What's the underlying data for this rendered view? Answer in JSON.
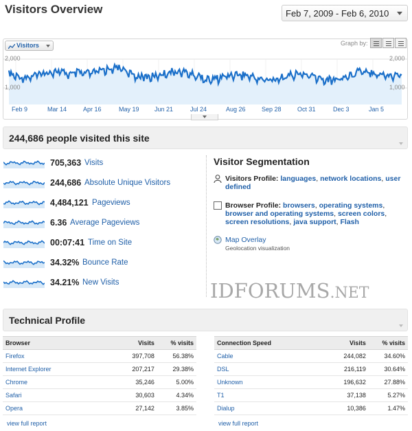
{
  "header": {
    "title": "Visitors Overview",
    "date_range": "Feb 7, 2009 - Feb 6, 2010"
  },
  "graph": {
    "metric_label": "Visitors",
    "graph_by_label": "Graph by:",
    "y_top": "2,000",
    "y_mid": "1,000",
    "y_top_right": "2,000",
    "y_mid_right": "1,000",
    "x_labels": [
      "Feb 9",
      "Mar 14",
      "Apr 16",
      "May 19",
      "Jun 21",
      "Jul 24",
      "Aug 26",
      "Sep 28",
      "Oct 31",
      "Dec 3",
      "Jan 5"
    ],
    "line_color": "#1a6fc9",
    "fill_color": "#e3f0fb"
  },
  "summary": {
    "headline": "244,686 people visited this site"
  },
  "metrics": [
    {
      "value": "705,363",
      "label": "Visits"
    },
    {
      "value": "244,686",
      "label": "Absolute Unique Visitors"
    },
    {
      "value": "4,484,121",
      "label": "Pageviews"
    },
    {
      "value": "6.36",
      "label": "Average Pageviews"
    },
    {
      "value": "00:07:41",
      "label": "Time on Site"
    },
    {
      "value": "34.32%",
      "label": "Bounce Rate"
    },
    {
      "value": "34.21%",
      "label": "New Visits"
    }
  ],
  "segmentation": {
    "title": "Visitor Segmentation",
    "visitors_profile": {
      "label": "Visitors Profile:",
      "links": [
        "languages",
        "network locations",
        "user defined"
      ]
    },
    "browser_profile": {
      "label": "Browser Profile:",
      "links": [
        "browsers",
        "operating systems",
        "browser and operating systems",
        "screen colors",
        "screen resolutions",
        "java support",
        "Flash"
      ]
    },
    "map_overlay": {
      "label": "Map Overlay",
      "sub": "Geolocation visualization"
    }
  },
  "watermark": {
    "main": "IDFORUMS",
    "suffix": ".NET"
  },
  "technical": {
    "title": "Technical Profile",
    "browser_table": {
      "headers": [
        "Browser",
        "Visits",
        "% visits"
      ],
      "rows": [
        [
          "Firefox",
          "397,708",
          "56.38%"
        ],
        [
          "Internet Explorer",
          "207,217",
          "29.38%"
        ],
        [
          "Chrome",
          "35,246",
          "5.00%"
        ],
        [
          "Safari",
          "30,603",
          "4.34%"
        ],
        [
          "Opera",
          "27,142",
          "3.85%"
        ]
      ],
      "report_link": "view full report"
    },
    "connection_table": {
      "headers": [
        "Connection Speed",
        "Visits",
        "% visits"
      ],
      "rows": [
        [
          "Cable",
          "244,082",
          "34.60%"
        ],
        [
          "DSL",
          "216,119",
          "30.64%"
        ],
        [
          "Unknown",
          "196,632",
          "27.88%"
        ],
        [
          "T1",
          "37,138",
          "5.27%"
        ],
        [
          "Dialup",
          "10,386",
          "1.47%"
        ]
      ],
      "report_link": "view full report"
    }
  }
}
